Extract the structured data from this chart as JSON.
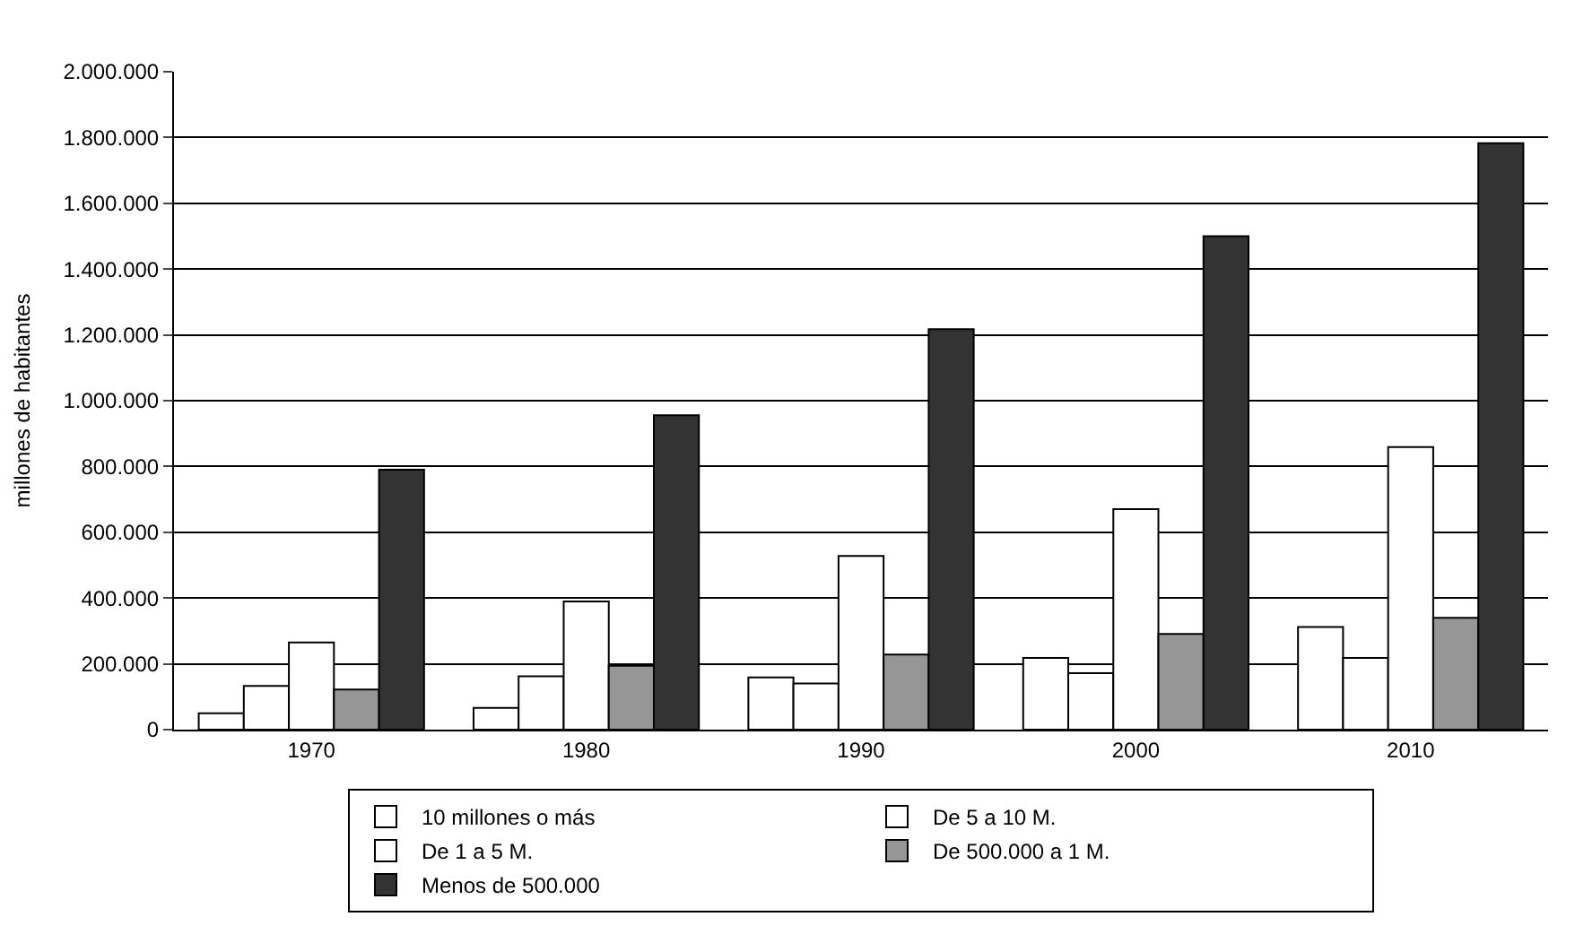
{
  "chart_data": {
    "type": "bar",
    "ylabel": "millones de habitantes",
    "categories": [
      "1970",
      "1980",
      "1990",
      "2000",
      "2010"
    ],
    "series": [
      {
        "name": "10 millones o más",
        "color": "#ffffff",
        "values": [
          50000,
          66000,
          159000,
          218000,
          312000
        ]
      },
      {
        "name": "De 5 a 10 M.",
        "color": "#ffffff",
        "values": [
          133000,
          162000,
          140000,
          172000,
          218000
        ]
      },
      {
        "name": "De 1 a 5 M.",
        "color": "#ffffff",
        "values": [
          265000,
          390000,
          528000,
          670000,
          859000
        ]
      },
      {
        "name": "De 500.000 a 1 M.",
        "color": "#969696",
        "values": [
          122000,
          194000,
          228000,
          291000,
          340000
        ]
      },
      {
        "name": "Menos de 500.000",
        "color": "#333333",
        "values": [
          790000,
          956000,
          1217000,
          1500000,
          1783000
        ]
      }
    ],
    "ylim": [
      0,
      2000000
    ],
    "yticks": [
      0,
      {
        "value": 200000,
        "label": "200.000"
      },
      {
        "value": 400000,
        "label": "400.000"
      },
      {
        "value": 600000,
        "label": "600.000"
      },
      {
        "value": 800000,
        "label": "800.000"
      },
      {
        "value": 1000000,
        "label": "1.000.000"
      },
      {
        "value": 1200000,
        "label": "1.200.000"
      },
      {
        "value": 1400000,
        "label": "1.400.000"
      },
      {
        "value": 1600000,
        "label": "1.600.000"
      },
      {
        "value": 1800000,
        "label": "1.800.000"
      },
      {
        "value": 2000000,
        "label": "2.000.000"
      }
    ],
    "grid": "y",
    "legend": "bottom"
  }
}
